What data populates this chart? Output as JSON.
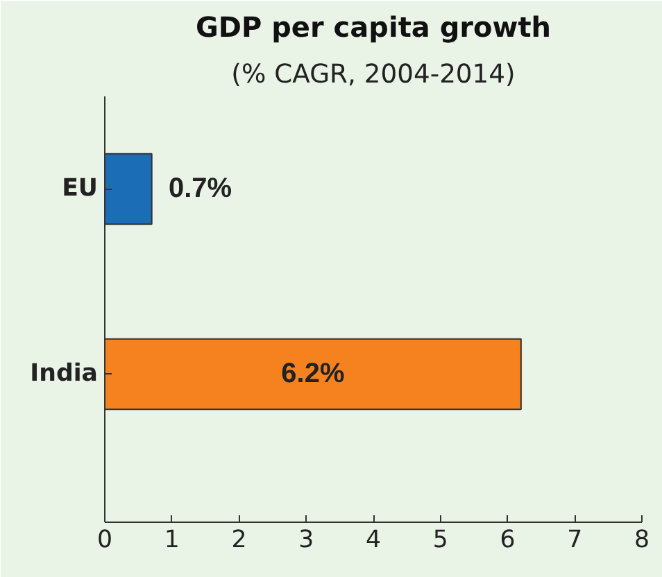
{
  "chart_data": {
    "type": "bar",
    "orientation": "horizontal",
    "title": "GDP per capita growth",
    "subtitle": "(% CAGR, 2004-2014)",
    "categories": [
      "EU",
      "India"
    ],
    "values": [
      0.7,
      6.2
    ],
    "colors": [
      "#1b6db5",
      "#f5821f"
    ],
    "value_labels": [
      "0.7%",
      "6.2%"
    ],
    "xlim": [
      0,
      8
    ],
    "xticks": [
      0,
      1,
      2,
      3,
      4,
      5,
      6,
      7,
      8
    ],
    "grid": false
  }
}
